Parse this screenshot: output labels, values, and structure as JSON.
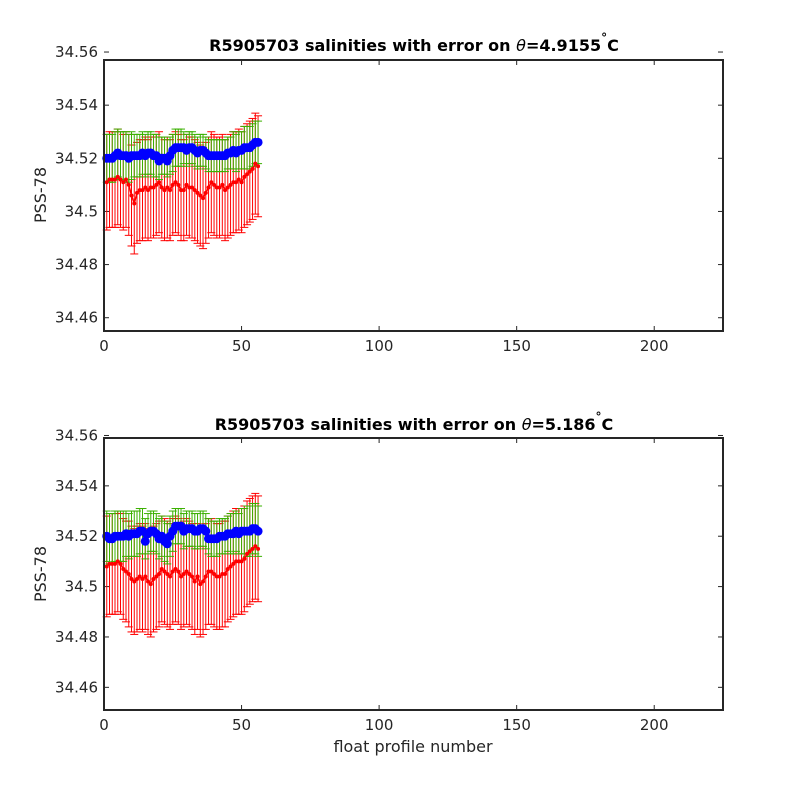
{
  "figure": {
    "xlabel": "float profile number"
  },
  "colors": {
    "raw": "#ff0000",
    "calibrated": "#3ab000",
    "mapped": "#0000ff",
    "axes": "#262626"
  },
  "chart_data": [
    {
      "type": "line",
      "title_prefix": "R5905703 salinities with error on ",
      "title_theta": "θ",
      "title_value": "=4.9155",
      "title_degree": "°",
      "title_unit": "C",
      "ylabel": "PSS-78",
      "xlim": [
        0,
        225
      ],
      "ylim": [
        34.455,
        34.557
      ],
      "xticks": [
        0,
        50,
        100,
        150,
        200
      ],
      "yticks": [
        34.46,
        34.48,
        34.5,
        34.52,
        34.54,
        34.56
      ],
      "ytick_labels": [
        "34.46",
        "34.48",
        "34.5",
        "34.52",
        "34.54",
        "34.56"
      ],
      "x": [
        1,
        2,
        3,
        4,
        5,
        6,
        7,
        8,
        9,
        10,
        11,
        12,
        13,
        14,
        15,
        16,
        17,
        18,
        19,
        20,
        21,
        22,
        23,
        24,
        25,
        26,
        27,
        28,
        29,
        30,
        31,
        32,
        33,
        34,
        35,
        36,
        37,
        38,
        39,
        40,
        41,
        42,
        43,
        44,
        45,
        46,
        47,
        48,
        49,
        50,
        51,
        52,
        53,
        54,
        55,
        56
      ],
      "series": [
        {
          "key": "raw",
          "values": [
            34.511,
            34.512,
            34.512,
            34.512,
            34.513,
            34.512,
            34.511,
            34.512,
            34.51,
            34.506,
            34.503,
            34.507,
            34.508,
            34.508,
            34.509,
            34.508,
            34.509,
            34.509,
            34.51,
            34.511,
            34.509,
            34.508,
            34.509,
            34.508,
            34.51,
            34.511,
            34.51,
            34.508,
            34.508,
            34.51,
            34.509,
            34.509,
            34.508,
            34.507,
            34.506,
            34.505,
            34.507,
            34.509,
            34.511,
            34.51,
            34.509,
            34.509,
            34.51,
            34.508,
            34.509,
            34.51,
            34.511,
            34.511,
            34.512,
            34.511,
            34.513,
            34.514,
            34.515,
            34.516,
            34.518,
            34.517
          ],
          "error": [
            0.018,
            0.018,
            0.018,
            0.018,
            0.018,
            0.018,
            0.018,
            0.018,
            0.019,
            0.019,
            0.019,
            0.019,
            0.019,
            0.019,
            0.019,
            0.019,
            0.019,
            0.019,
            0.019,
            0.019,
            0.019,
            0.019,
            0.019,
            0.019,
            0.019,
            0.019,
            0.019,
            0.019,
            0.019,
            0.019,
            0.019,
            0.019,
            0.019,
            0.019,
            0.019,
            0.019,
            0.019,
            0.019,
            0.019,
            0.019,
            0.019,
            0.019,
            0.019,
            0.019,
            0.019,
            0.019,
            0.019,
            0.019,
            0.019,
            0.019,
            0.019,
            0.019,
            0.019,
            0.019,
            0.019,
            0.019
          ]
        },
        {
          "key": "calibrated",
          "values": [
            34.52,
            34.52,
            34.52,
            34.521,
            34.522,
            34.521,
            34.521,
            34.521,
            34.52,
            34.521,
            34.521,
            34.521,
            34.521,
            34.522,
            34.521,
            34.522,
            34.522,
            34.521,
            34.521,
            34.52,
            34.521,
            34.521,
            34.52,
            34.521,
            34.522,
            34.524,
            34.524,
            34.524,
            34.524,
            34.523,
            34.524,
            34.524,
            34.523,
            34.522,
            34.523,
            34.523,
            34.522,
            34.521,
            34.521,
            34.521,
            34.521,
            34.521,
            34.521,
            34.521,
            34.522,
            34.522,
            34.523,
            34.522,
            34.523,
            34.523,
            34.524,
            34.524,
            34.524,
            34.525,
            34.526,
            34.526
          ],
          "error": [
            0.009,
            0.009,
            0.009,
            0.009,
            0.009,
            0.009,
            0.009,
            0.009,
            0.009,
            0.009,
            0.008,
            0.008,
            0.008,
            0.008,
            0.008,
            0.008,
            0.008,
            0.008,
            0.008,
            0.008,
            0.007,
            0.007,
            0.007,
            0.007,
            0.007,
            0.007,
            0.007,
            0.007,
            0.006,
            0.006,
            0.006,
            0.006,
            0.006,
            0.006,
            0.006,
            0.006,
            0.006,
            0.006,
            0.006,
            0.006,
            0.006,
            0.006,
            0.006,
            0.006,
            0.006,
            0.006,
            0.007,
            0.007,
            0.007,
            0.007,
            0.008,
            0.008,
            0.008,
            0.008,
            0.008,
            0.008
          ]
        },
        {
          "key": "mapped",
          "values": [
            34.52,
            34.52,
            34.52,
            34.521,
            34.522,
            34.521,
            34.521,
            34.521,
            34.52,
            34.521,
            34.521,
            34.521,
            34.521,
            34.522,
            34.521,
            34.522,
            34.522,
            34.521,
            34.521,
            34.519,
            34.52,
            34.52,
            34.519,
            34.521,
            34.523,
            34.524,
            34.524,
            34.524,
            34.524,
            34.523,
            34.524,
            34.524,
            34.523,
            34.522,
            34.523,
            34.523,
            34.522,
            34.521,
            34.521,
            34.521,
            34.521,
            34.521,
            34.521,
            34.521,
            34.522,
            34.522,
            34.523,
            34.522,
            34.523,
            34.523,
            34.524,
            34.524,
            34.524,
            34.525,
            34.526,
            34.526
          ]
        }
      ]
    },
    {
      "type": "line",
      "title_prefix": "R5905703 salinities with error on ",
      "title_theta": "θ",
      "title_value": "=5.186",
      "title_degree": "°",
      "title_unit": "C",
      "ylabel": "PSS-78",
      "xlim": [
        0,
        225
      ],
      "ylim": [
        34.451,
        34.559
      ],
      "xticks": [
        0,
        50,
        100,
        150,
        200
      ],
      "yticks": [
        34.46,
        34.48,
        34.5,
        34.52,
        34.54,
        34.56
      ],
      "ytick_labels": [
        "34.46",
        "34.48",
        "34.5",
        "34.52",
        "34.54",
        "34.56"
      ],
      "x": [
        1,
        2,
        3,
        4,
        5,
        6,
        7,
        8,
        9,
        10,
        11,
        12,
        13,
        14,
        15,
        16,
        17,
        18,
        19,
        20,
        21,
        22,
        23,
        24,
        25,
        26,
        27,
        28,
        29,
        30,
        31,
        32,
        33,
        34,
        35,
        36,
        37,
        38,
        39,
        40,
        41,
        42,
        43,
        44,
        45,
        46,
        47,
        48,
        49,
        50,
        51,
        52,
        53,
        54,
        55,
        56
      ],
      "series": [
        {
          "key": "raw",
          "values": [
            34.508,
            34.509,
            34.509,
            34.509,
            34.51,
            34.509,
            34.507,
            34.506,
            34.505,
            34.503,
            34.502,
            34.503,
            34.504,
            34.503,
            34.504,
            34.502,
            34.501,
            34.503,
            34.504,
            34.505,
            34.507,
            34.506,
            34.505,
            34.504,
            34.506,
            34.507,
            34.506,
            34.504,
            34.505,
            34.506,
            34.505,
            34.504,
            34.502,
            34.504,
            34.501,
            34.502,
            34.504,
            34.506,
            34.506,
            34.505,
            34.504,
            34.504,
            34.505,
            34.505,
            34.507,
            34.508,
            34.509,
            34.51,
            34.51,
            34.51,
            34.511,
            34.513,
            34.514,
            34.515,
            34.516,
            34.515
          ],
          "error": [
            0.02,
            0.02,
            0.02,
            0.02,
            0.02,
            0.02,
            0.02,
            0.02,
            0.021,
            0.021,
            0.021,
            0.021,
            0.021,
            0.021,
            0.021,
            0.021,
            0.021,
            0.021,
            0.021,
            0.021,
            0.021,
            0.021,
            0.021,
            0.021,
            0.021,
            0.021,
            0.021,
            0.021,
            0.021,
            0.021,
            0.021,
            0.021,
            0.021,
            0.021,
            0.021,
            0.021,
            0.021,
            0.021,
            0.021,
            0.021,
            0.021,
            0.021,
            0.021,
            0.021,
            0.021,
            0.021,
            0.021,
            0.021,
            0.021,
            0.021,
            0.021,
            0.021,
            0.021,
            0.021,
            0.021,
            0.021
          ]
        },
        {
          "key": "calibrated",
          "values": [
            34.52,
            34.519,
            34.519,
            34.52,
            34.52,
            34.52,
            34.52,
            34.521,
            34.52,
            34.521,
            34.521,
            34.521,
            34.522,
            34.522,
            34.519,
            34.521,
            34.522,
            34.522,
            34.521,
            34.519,
            34.52,
            34.518,
            34.517,
            34.52,
            34.522,
            34.524,
            34.524,
            34.524,
            34.522,
            34.523,
            34.523,
            34.523,
            34.522,
            34.522,
            34.523,
            34.523,
            34.522,
            34.52,
            34.519,
            34.519,
            34.519,
            34.52,
            34.52,
            34.52,
            34.521,
            34.521,
            34.521,
            34.522,
            34.521,
            34.522,
            34.522,
            34.522,
            34.522,
            34.523,
            34.523,
            34.522
          ],
          "error": [
            0.01,
            0.01,
            0.01,
            0.01,
            0.01,
            0.01,
            0.01,
            0.009,
            0.009,
            0.009,
            0.009,
            0.009,
            0.009,
            0.009,
            0.008,
            0.008,
            0.008,
            0.008,
            0.008,
            0.008,
            0.008,
            0.008,
            0.008,
            0.008,
            0.008,
            0.007,
            0.007,
            0.007,
            0.007,
            0.007,
            0.007,
            0.007,
            0.007,
            0.007,
            0.007,
            0.007,
            0.007,
            0.007,
            0.007,
            0.007,
            0.007,
            0.007,
            0.007,
            0.007,
            0.007,
            0.008,
            0.008,
            0.008,
            0.008,
            0.009,
            0.009,
            0.01,
            0.01,
            0.01,
            0.01,
            0.01
          ]
        },
        {
          "key": "mapped",
          "values": [
            34.52,
            34.519,
            34.519,
            34.52,
            34.52,
            34.52,
            34.52,
            34.521,
            34.52,
            34.521,
            34.521,
            34.521,
            34.522,
            34.522,
            34.518,
            34.521,
            34.522,
            34.522,
            34.521,
            34.519,
            34.52,
            34.518,
            34.517,
            34.52,
            34.522,
            34.524,
            34.524,
            34.524,
            34.522,
            34.523,
            34.523,
            34.523,
            34.522,
            34.522,
            34.523,
            34.523,
            34.522,
            34.519,
            34.519,
            34.519,
            34.519,
            34.52,
            34.52,
            34.52,
            34.521,
            34.521,
            34.521,
            34.522,
            34.521,
            34.522,
            34.522,
            34.522,
            34.522,
            34.523,
            34.523,
            34.522
          ]
        }
      ]
    }
  ]
}
